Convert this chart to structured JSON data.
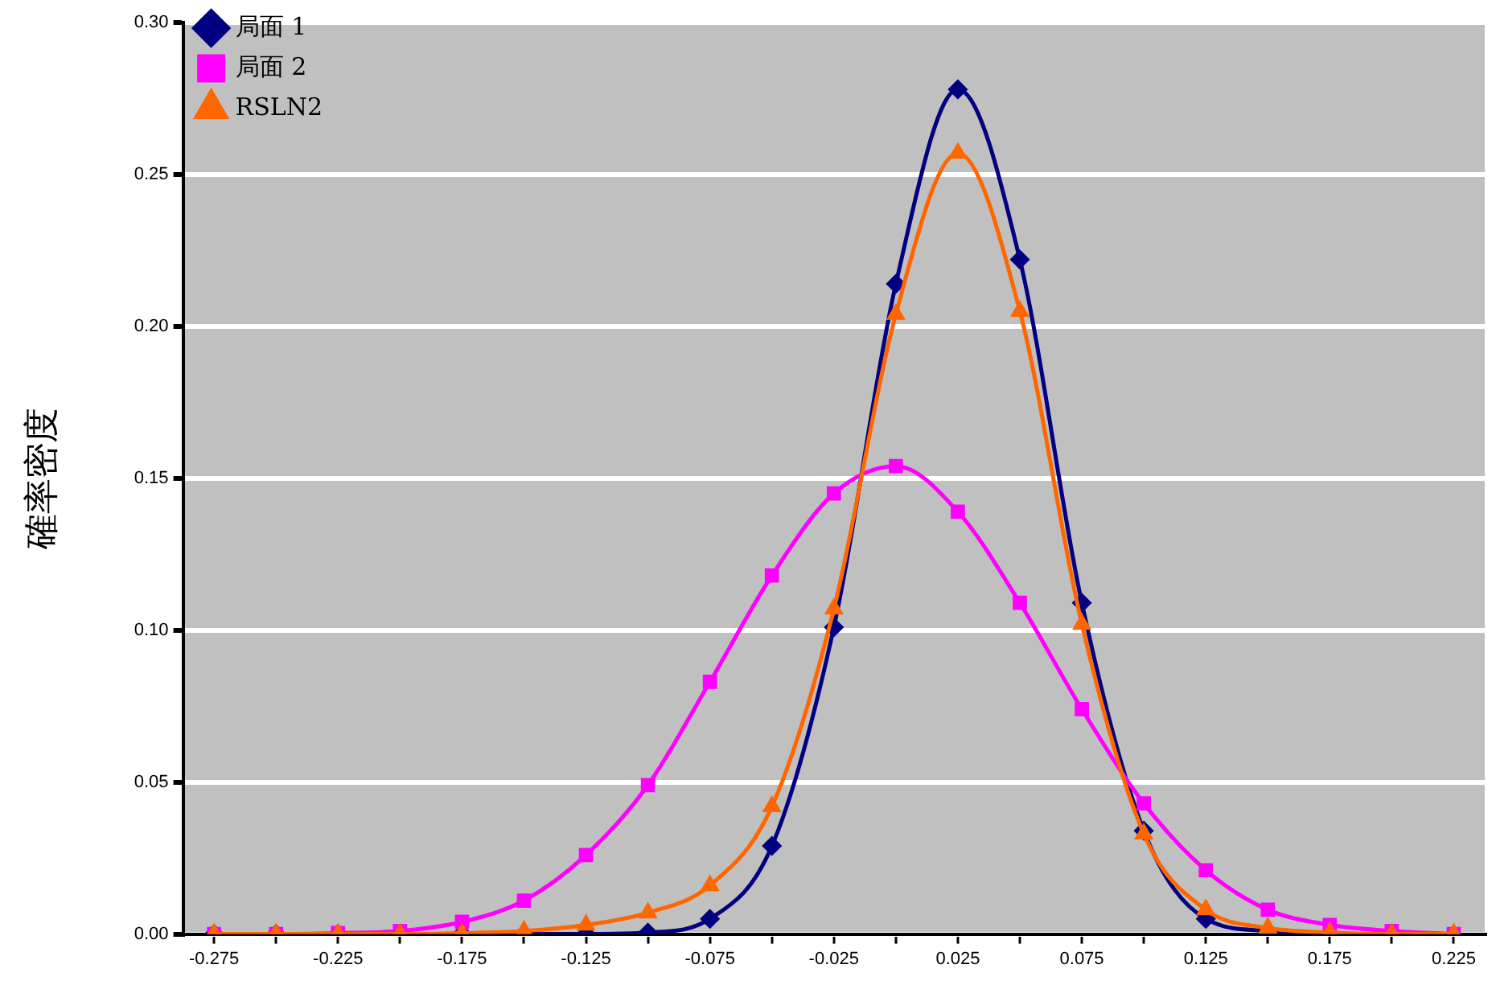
{
  "chart_data": {
    "type": "line",
    "ylabel": "確率密度",
    "x": [
      -0.275,
      -0.25,
      -0.225,
      -0.2,
      -0.175,
      -0.15,
      -0.125,
      -0.1,
      -0.075,
      -0.05,
      -0.025,
      0,
      0.025,
      0.05,
      0.075,
      0.1,
      0.125,
      0.15,
      0.175,
      0.2,
      0.225
    ],
    "series": [
      {
        "name": "局面 1",
        "color": "#000080",
        "marker": "diamond",
        "values": [
          0,
          0,
          0,
          0,
          0,
          0,
          0,
          0.0005,
          0.005,
          0.029,
          0.101,
          0.214,
          0.278,
          0.222,
          0.109,
          0.034,
          0.005,
          0.001,
          0,
          null,
          null
        ]
      },
      {
        "name": "局面 2",
        "color": "#ff00ff",
        "marker": "square",
        "values": [
          0,
          0,
          0.0003,
          0.001,
          0.004,
          0.011,
          0.026,
          0.049,
          0.083,
          0.118,
          0.145,
          0.154,
          0.139,
          0.109,
          0.074,
          0.043,
          0.021,
          0.008,
          0.003,
          0.001,
          0
        ]
      },
      {
        "name": "RSLN2",
        "color": "#ff6600",
        "marker": "triangle",
        "values": [
          0,
          0,
          0,
          0,
          0.0003,
          0.001,
          0.003,
          0.007,
          0.016,
          0.042,
          0.107,
          0.204,
          0.257,
          0.205,
          0.102,
          0.033,
          0.008,
          0.002,
          0.0005,
          0,
          0
        ]
      }
    ],
    "xlim": [
      -0.2875,
      0.2375
    ],
    "xticks": [
      -0.275,
      {
        "value": -0.25,
        "label": null
      },
      -0.225,
      {
        "value": -0.2,
        "label": null
      },
      -0.175,
      {
        "value": -0.15,
        "label": null
      },
      -0.125,
      {
        "value": -0.1,
        "label": null
      },
      -0.075,
      {
        "value": -0.05,
        "label": null
      },
      -0.025,
      {
        "value": 0,
        "label": null
      },
      0.025,
      {
        "value": 0.05,
        "label": null
      },
      0.075,
      {
        "value": 0.1,
        "label": null
      },
      0.125,
      {
        "value": 0.15,
        "label": null
      },
      0.175,
      {
        "value": 0.2,
        "label": null
      },
      0.225
    ],
    "ylim": [
      0,
      0.3
    ],
    "yticks": [
      {
        "value": 0,
        "label": "0.00"
      },
      {
        "value": 0.05,
        "label": "0.05"
      },
      {
        "value": 0.1,
        "label": "0.10"
      },
      {
        "value": 0.15,
        "label": "0.15"
      },
      {
        "value": 0.2,
        "label": "0.20"
      },
      {
        "value": 0.25,
        "label": "0.25"
      },
      {
        "value": 0.3,
        "label": "0.30"
      }
    ],
    "grid": "y",
    "legend": "top left"
  }
}
